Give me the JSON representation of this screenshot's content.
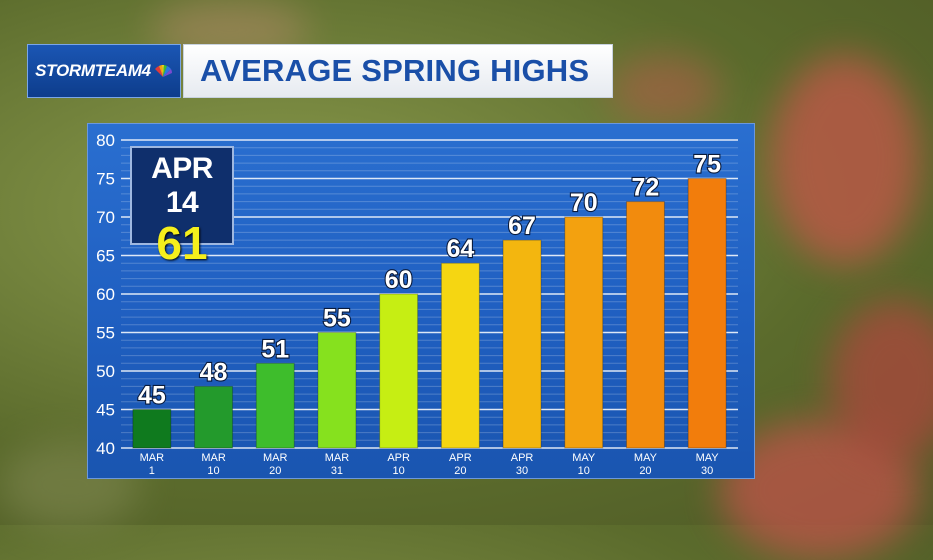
{
  "brand": {
    "logo_text": "STORMTEAM4"
  },
  "header": {
    "title": "AVERAGE SPRING HIGHS"
  },
  "highlight": {
    "date": "APR 14",
    "value": "61",
    "value_color": "#f5ef1c"
  },
  "colors": {
    "panel": "#2060c2",
    "bars": [
      "#0f7a1e",
      "#239a2c",
      "#3ebd2c",
      "#86e11e",
      "#c6ee13",
      "#f5d612",
      "#f3b60f",
      "#f3a10f",
      "#f28b0d",
      "#f27d0c"
    ]
  },
  "chart_data": {
    "type": "bar",
    "title": "AVERAGE SPRING HIGHS",
    "categories": [
      [
        "MAR",
        "1"
      ],
      [
        "MAR",
        "10"
      ],
      [
        "MAR",
        "20"
      ],
      [
        "MAR",
        "31"
      ],
      [
        "APR",
        "10"
      ],
      [
        "APR",
        "20"
      ],
      [
        "APR",
        "30"
      ],
      [
        "MAY",
        "10"
      ],
      [
        "MAY",
        "20"
      ],
      [
        "MAY",
        "30"
      ]
    ],
    "values": [
      45,
      48,
      51,
      55,
      60,
      64,
      67,
      70,
      72,
      75
    ],
    "ylim": [
      40,
      80
    ],
    "yticks": [
      40,
      45,
      50,
      55,
      60,
      65,
      70,
      75,
      80
    ],
    "xlabel": "",
    "ylabel": "",
    "grid": true,
    "data_labels": true
  }
}
